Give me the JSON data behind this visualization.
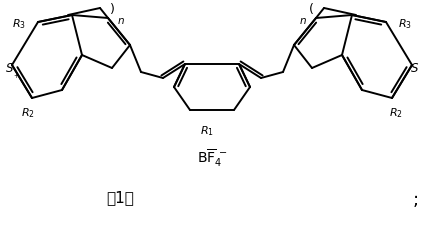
{
  "background": "#ffffff",
  "fig_width": 4.24,
  "fig_height": 2.25,
  "dpi": 100,
  "lw": 1.4,
  "color": "#000000",
  "bf4_text": "$\\mathrm{B\\overline{F}_4^{\\,-}}$",
  "compound_num": "（1）",
  "semicolon": "；"
}
